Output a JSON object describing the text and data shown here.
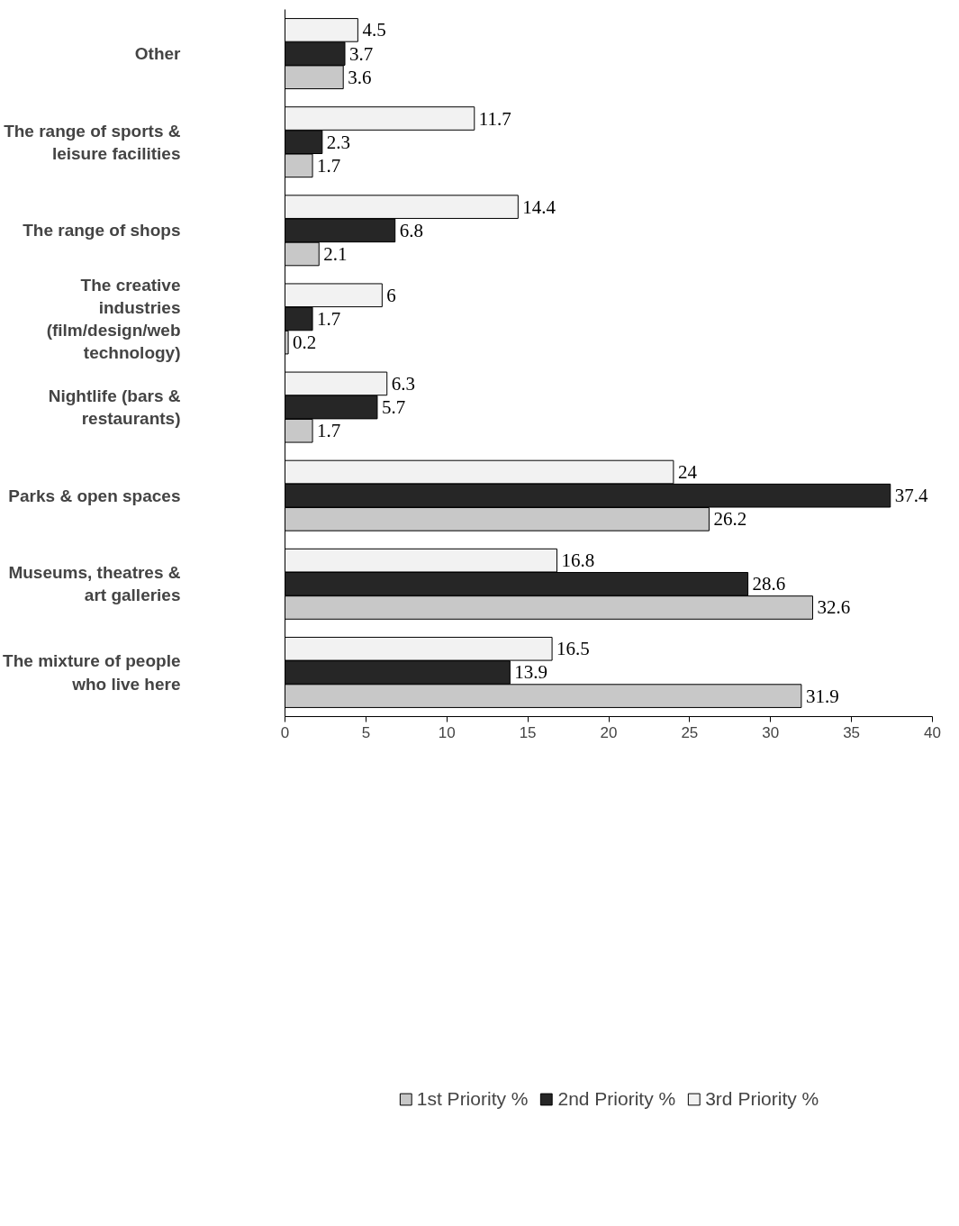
{
  "chart_data": {
    "type": "bar",
    "orientation": "horizontal",
    "categories": [
      "Other",
      "The range of sports & leisure facilities",
      "The range of shops",
      "The creative industries (film/design/web technology)",
      "Nightlife (bars & restaurants)",
      "Parks & open spaces",
      "Museums, theatres & art galleries",
      "The mixture of people who live here"
    ],
    "series": [
      {
        "name": "1st Priority %",
        "color": "#c8c8c8",
        "values": [
          3.6,
          1.7,
          2.1,
          0.2,
          1.7,
          26.2,
          32.6,
          31.9
        ]
      },
      {
        "name": "2nd Priority %",
        "color": "#262626",
        "values": [
          3.7,
          2.3,
          6.8,
          1.7,
          5.7,
          37.4,
          28.6,
          13.9
        ]
      },
      {
        "name": "3rd Priority %",
        "color": "#f2f2f2",
        "values": [
          4.5,
          11.7,
          14.4,
          6,
          6.3,
          24,
          16.8,
          16.5
        ]
      }
    ],
    "xlim": [
      0,
      40
    ],
    "xticks": [
      0,
      5,
      10,
      15,
      20,
      25,
      30,
      35,
      40
    ],
    "data_labels": true,
    "grid": false,
    "legend": "bottom"
  }
}
